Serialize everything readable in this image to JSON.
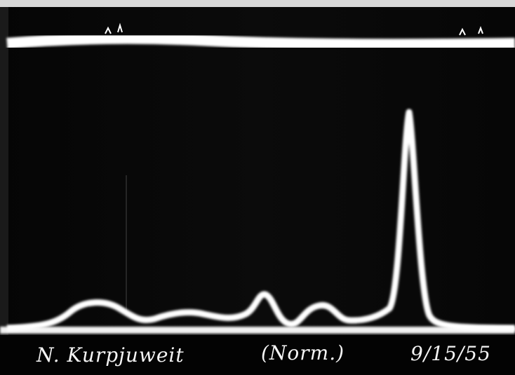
{
  "caption": {
    "name": "N. Kurpjuweit",
    "note": "(Norm.)",
    "date": "9/15/55"
  }
}
